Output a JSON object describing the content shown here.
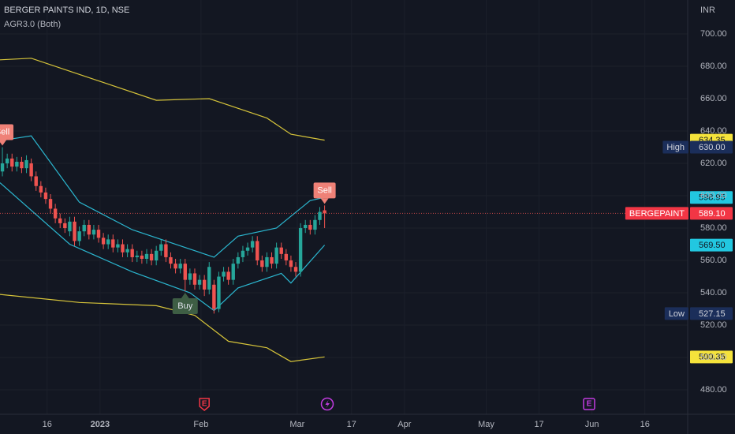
{
  "chart_data": {
    "type": "candlestick",
    "title": "BERGER PAINTS IND, 1D, NSE",
    "indicator": "AGR3.0 (Both)",
    "currency": "INR",
    "up_color": "#26a69a",
    "down_color": "#ef5350",
    "open": [
      615,
      620,
      623,
      618,
      621,
      617,
      620,
      612,
      606,
      602,
      598,
      592,
      586,
      583,
      578,
      584,
      572,
      578,
      582,
      576,
      579,
      574,
      570,
      573,
      568,
      570,
      565,
      567,
      562,
      563,
      561,
      564,
      560,
      566,
      570,
      562,
      558,
      555,
      558,
      548,
      552,
      545,
      548,
      542,
      545,
      530,
      550,
      553,
      548,
      558,
      562,
      566,
      568,
      572,
      560,
      556,
      562,
      558,
      568,
      564,
      560,
      556,
      553,
      580,
      582,
      579,
      585,
      591
    ],
    "high": [
      630,
      626,
      626,
      624,
      624,
      625,
      623,
      615,
      609,
      605,
      601,
      595,
      589,
      586,
      587,
      587,
      581,
      585,
      585,
      582,
      582,
      577,
      576,
      576,
      573,
      573,
      570,
      570,
      566,
      566,
      567,
      567,
      569,
      573,
      573,
      565,
      561,
      561,
      561,
      555,
      555,
      551,
      551,
      559,
      548,
      553,
      556,
      556,
      561,
      565,
      569,
      571,
      575,
      575,
      563,
      565,
      565,
      571,
      571,
      567,
      563,
      559,
      583,
      585,
      585,
      588,
      593,
      594
    ],
    "low": [
      612,
      617,
      615,
      615,
      614,
      614,
      609,
      603,
      599,
      595,
      589,
      583,
      580,
      577,
      575,
      569,
      569,
      575,
      573,
      573,
      571,
      567,
      567,
      565,
      565,
      562,
      562,
      559,
      559,
      558,
      558,
      557,
      557,
      563,
      559,
      555,
      552,
      552,
      541,
      545,
      542,
      542,
      538,
      539,
      527.15,
      528,
      547,
      545,
      545,
      555,
      559,
      563,
      565,
      557,
      553,
      553,
      555,
      555,
      561,
      557,
      553,
      550,
      550,
      577,
      576,
      576,
      582,
      580
    ],
    "close": [
      620,
      623,
      618,
      621,
      617,
      622,
      612,
      606,
      602,
      598,
      592,
      586,
      583,
      580,
      584,
      572,
      578,
      582,
      576,
      579,
      574,
      570,
      573,
      568,
      570,
      565,
      567,
      562,
      563,
      561,
      564,
      560,
      566,
      570,
      562,
      558,
      555,
      558,
      548,
      552,
      545,
      548,
      542,
      556,
      530,
      550,
      553,
      548,
      558,
      562,
      566,
      568,
      572,
      560,
      556,
      562,
      558,
      568,
      564,
      560,
      556,
      553,
      580,
      582,
      579,
      585,
      590,
      589.1
    ],
    "bands": [
      {
        "color": "#2bb7d0",
        "x": [
          -0.5,
          6,
          16,
          27,
          39,
          44,
          49,
          57,
          64,
          67
        ],
        "values": [
          634,
          637,
          596,
          579,
          567,
          562,
          575,
          580,
          597,
          598.95
        ]
      },
      {
        "color": "#2bb7d0",
        "x": [
          -0.5,
          14,
          27,
          39,
          44,
          49,
          58,
          60,
          67
        ],
        "values": [
          608,
          570,
          553,
          540,
          529,
          543,
          552,
          546,
          569.5
        ]
      },
      {
        "color": "#d6c43a",
        "x": [
          -0.5,
          6,
          16,
          32,
          43,
          55,
          60,
          67
        ],
        "values": [
          684,
          685,
          675,
          659,
          660,
          648,
          638,
          634.35
        ]
      },
      {
        "color": "#d6c43a",
        "x": [
          -0.5,
          16,
          32,
          40,
          47,
          55,
          60,
          67
        ],
        "values": [
          539,
          534,
          532,
          526,
          510,
          506,
          497.5,
          500.35
        ]
      }
    ],
    "signals": [
      {
        "label": "Sell",
        "index": 0,
        "color": "#ef8177"
      },
      {
        "label": "Buy",
        "index": 38,
        "color": "#3e5e44"
      },
      {
        "label": "Sell",
        "index": 67,
        "color": "#ef8177"
      }
    ],
    "events": [
      {
        "label": "E",
        "index": 42,
        "color": "#f23645"
      },
      {
        "label": "E",
        "index": 122,
        "color": "#c23be0"
      }
    ],
    "price_tags": [
      {
        "value": 634.35,
        "label": "634.35",
        "color": "#f5e33b",
        "text_color": "#131722"
      },
      {
        "value": 630,
        "label": "630.00",
        "name": "High",
        "color": "#1b2e5a",
        "text_color": "#d1d4dc"
      },
      {
        "value": 598.95,
        "label": "598.95",
        "color": "#22c7e0",
        "text_color": "#131722"
      },
      {
        "value": 589.1,
        "label": "589.10",
        "name": "BERGEPAINT",
        "color": "#f23645",
        "text_color": "#ffffff"
      },
      {
        "value": 569.5,
        "label": "569.50",
        "color": "#22c7e0",
        "text_color": "#131722"
      },
      {
        "value": 527.15,
        "label": "527.15",
        "name": "Low",
        "color": "#1b2e5a",
        "text_color": "#d1d4dc"
      },
      {
        "value": 500.35,
        "label": "500.35",
        "color": "#f5e33b",
        "text_color": "#131722"
      }
    ],
    "xlim": [
      -0.5,
      142.5
    ],
    "xticks": [
      {
        "value": 9.3,
        "label": "16"
      },
      {
        "value": 20.3,
        "label": "2023"
      },
      {
        "value": 41.3,
        "label": "Feb"
      },
      {
        "value": 61.3,
        "label": "Mar"
      },
      {
        "value": 72.6,
        "label": "17"
      },
      {
        "value": 83.6,
        "label": "Apr"
      },
      {
        "value": 100.6,
        "label": "May"
      },
      {
        "value": 111.6,
        "label": "17"
      },
      {
        "value": 122.6,
        "label": "Jun"
      },
      {
        "value": 133.6,
        "label": "16"
      }
    ],
    "ylim": [
      464.9,
      721
    ],
    "yticks": [
      {
        "value": 480,
        "label": "480.00"
      },
      {
        "value": 500,
        "label": "500.00"
      },
      {
        "value": 520,
        "label": "520.00"
      },
      {
        "value": 540,
        "label": "540.00"
      },
      {
        "value": 560,
        "label": "560.00"
      },
      {
        "value": 580,
        "label": "580.00"
      },
      {
        "value": 600,
        "label": "600.00"
      },
      {
        "value": 620,
        "label": "620.00"
      },
      {
        "value": 640,
        "label": "640.00"
      },
      {
        "value": 660,
        "label": "660.00"
      },
      {
        "value": 680,
        "label": "680.00"
      },
      {
        "value": 700,
        "label": "700.00"
      }
    ],
    "grid": true
  }
}
